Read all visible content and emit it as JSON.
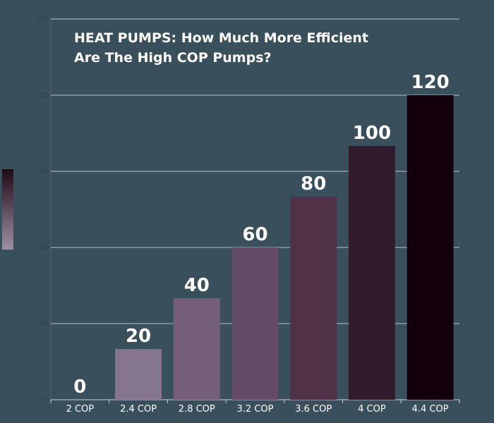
{
  "chart_data": {
    "type": "bar",
    "title": [
      "HEAT PUMPS: How Much More Efficient",
      "Are The High COP Pumps?"
    ],
    "categories": [
      "2 COP",
      "2.4 COP",
      "2.8 COP",
      "3.2 COP",
      "3.6 COP",
      "4 COP",
      "4.4 COP"
    ],
    "values": [
      0,
      20,
      40,
      60,
      80,
      100,
      120
    ],
    "colors": [
      "#8a7a94",
      "#857590",
      "#745e78",
      "#634a66",
      "#4f3248",
      "#321c2c",
      "#14000c"
    ],
    "ylim": [
      0,
      150
    ],
    "yticks": [
      0,
      30,
      60,
      90,
      120,
      150
    ],
    "grid": true,
    "legend": "color-scale bar at left",
    "xlabel": "",
    "ylabel": ""
  }
}
